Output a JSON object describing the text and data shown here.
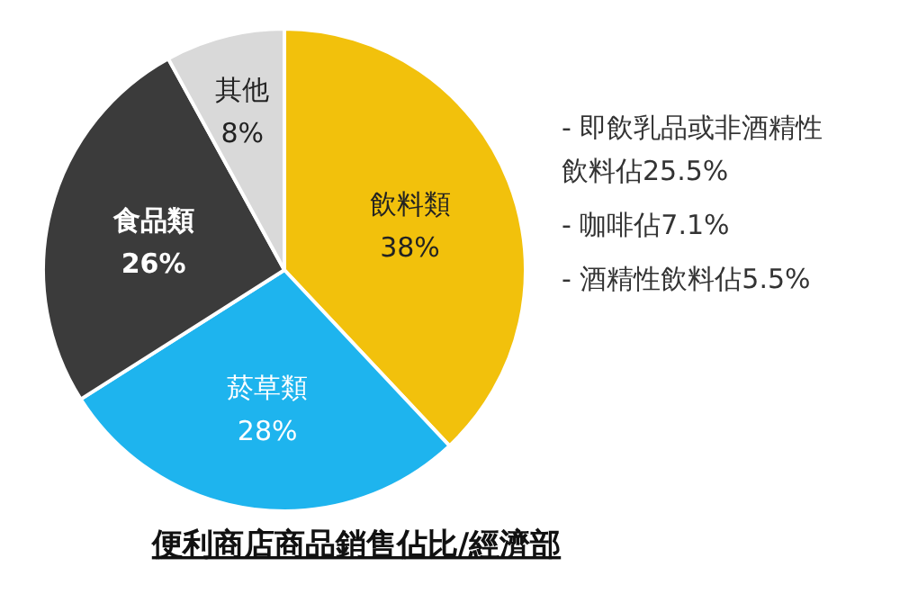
{
  "chart_data": {
    "type": "pie",
    "title": "便利商店商品銷售佔比/經濟部",
    "categories": [
      "飲料類",
      "菸草類",
      "食品類",
      "其他"
    ],
    "values": [
      38,
      28,
      26,
      8
    ],
    "value_labels": [
      "38%",
      "28%",
      "26%",
      "8%"
    ],
    "colors": [
      "#f2c10c",
      "#1eb4ee",
      "#3b3b3b",
      "#d9d9d9"
    ],
    "annotations": [
      "- 即飲乳品或非酒精性飲料佔25.5%",
      "- 咖啡佔7.1%",
      "- 酒精性飲料佔5.5%"
    ]
  }
}
